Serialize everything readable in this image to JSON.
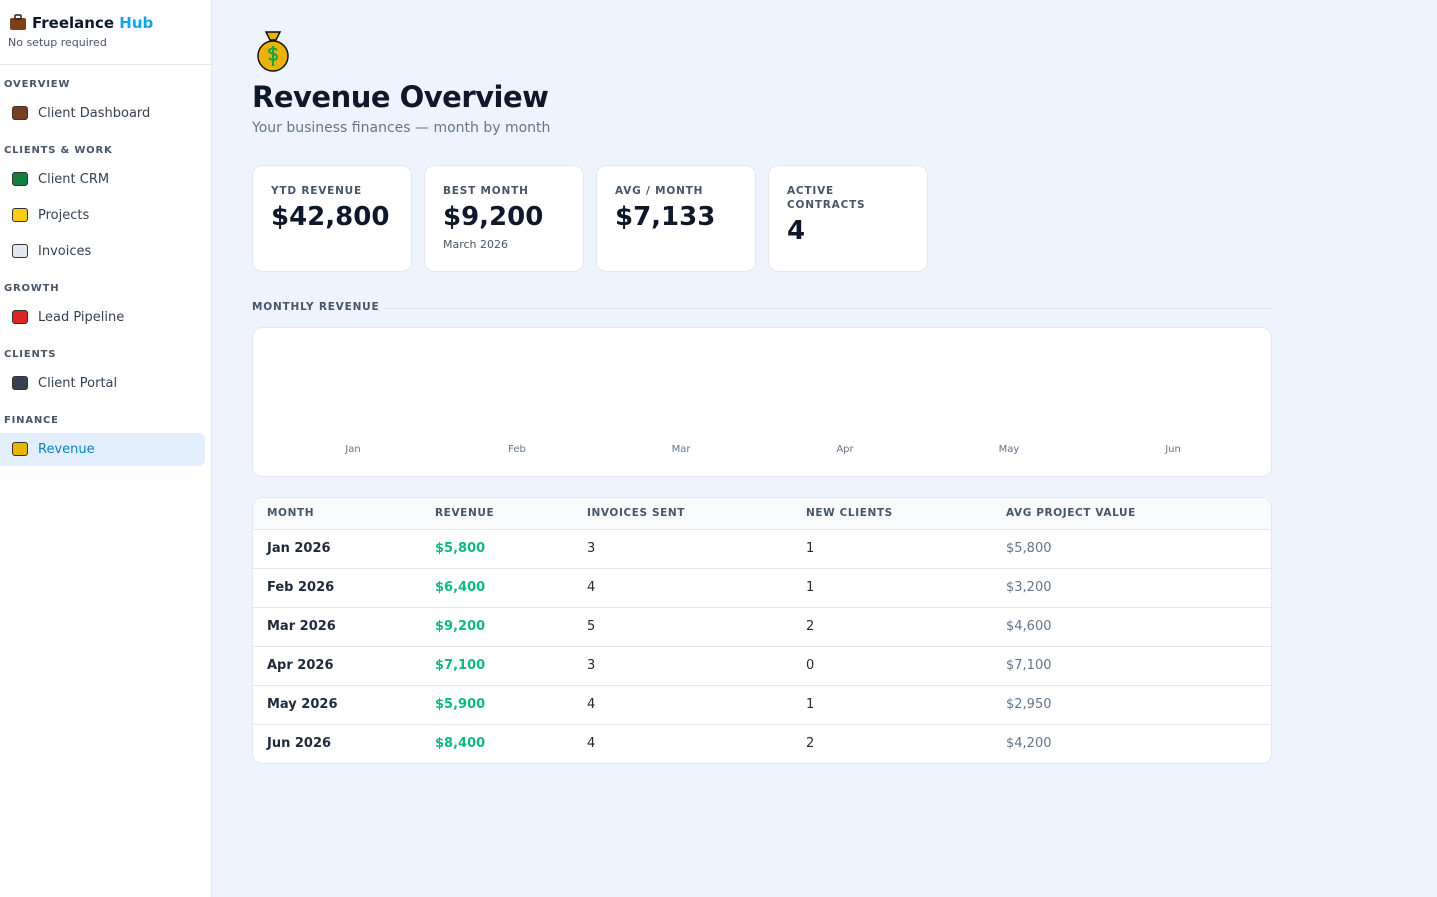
{
  "sidebar": {
    "brand": {
      "name": "Freelance",
      "accent": "Hub",
      "tagline": "No setup required"
    },
    "sections": [
      {
        "title": "OVERVIEW",
        "items": [
          "Client Dashboard"
        ]
      },
      {
        "title": "CLIENTS & WORK",
        "items": [
          "Client CRM",
          "Projects",
          "Invoices"
        ]
      },
      {
        "title": "GROWTH",
        "items": [
          "Lead Pipeline"
        ]
      },
      {
        "title": "CLIENTS",
        "items": [
          "Client Portal"
        ]
      },
      {
        "title": "FINANCE",
        "items": [
          "Revenue"
        ]
      }
    ]
  },
  "header": {
    "title": "Revenue Overview",
    "subtitle": "Your business finances — month by month"
  },
  "stats": [
    {
      "label": "YTD REVENUE",
      "value": "$42,800"
    },
    {
      "label": "BEST MONTH",
      "value": "$9,200",
      "note": "March 2026"
    },
    {
      "label": "AVG / MONTH",
      "value": "$7,133"
    },
    {
      "label": "ACTIVE CONTRACTS",
      "value": "4"
    }
  ],
  "chart": {
    "title": "MONTHLY REVENUE",
    "labels": [
      "Jan",
      "Feb",
      "Mar",
      "Apr",
      "May",
      "Jun"
    ]
  },
  "table": {
    "columns": [
      "MONTH",
      "REVENUE",
      "INVOICES SENT",
      "NEW CLIENTS",
      "AVG PROJECT VALUE"
    ],
    "rows": [
      [
        "Jan 2026",
        "$5,800",
        "3",
        "1",
        "$5,800"
      ],
      [
        "Feb 2026",
        "$6,400",
        "4",
        "1",
        "$3,200"
      ],
      [
        "Mar 2026",
        "$9,200",
        "5",
        "2",
        "$4,600"
      ],
      [
        "Apr 2026",
        "$7,100",
        "3",
        "0",
        "$7,100"
      ],
      [
        "May 2026",
        "$5,900",
        "4",
        "1",
        "$2,950"
      ],
      [
        "Jun 2026",
        "$8,400",
        "4",
        "2",
        "$4,200"
      ]
    ]
  }
}
